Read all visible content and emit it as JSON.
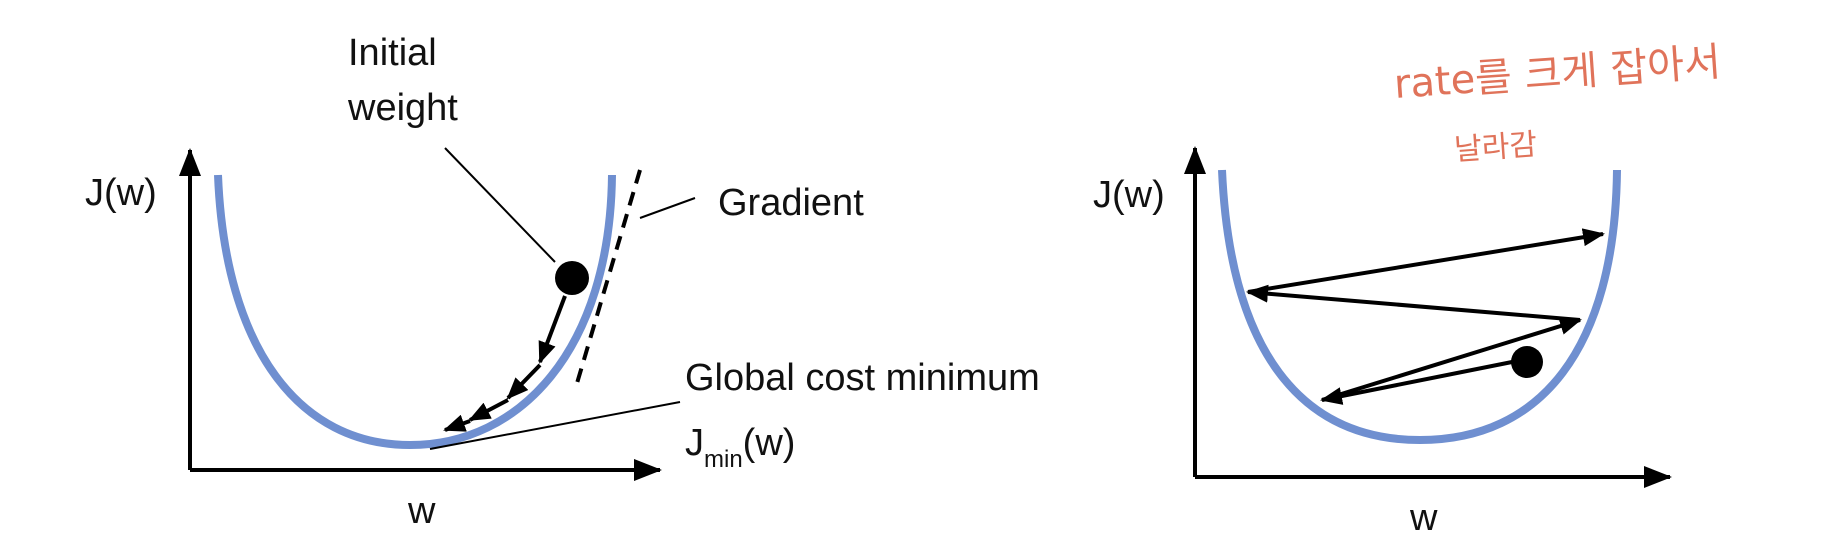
{
  "left_panel": {
    "y_axis_label": "J(w)",
    "x_axis_label": "w",
    "initial_weight_line1": "Initial",
    "initial_weight_line2": "weight",
    "gradient_label": "Gradient",
    "global_min_label": "Global cost minimum",
    "jmin_main": "J",
    "jmin_sub": "min",
    "jmin_tail": "(w)"
  },
  "right_panel": {
    "y_axis_label": "J(w)",
    "x_axis_label": "w",
    "handwritten_note_line1": "rate를 크게 잡아서",
    "handwritten_note_line2": "날라감"
  },
  "colors": {
    "curve": "#6f8fd0",
    "ink": "#000000",
    "handwriting": "#e0735a"
  }
}
